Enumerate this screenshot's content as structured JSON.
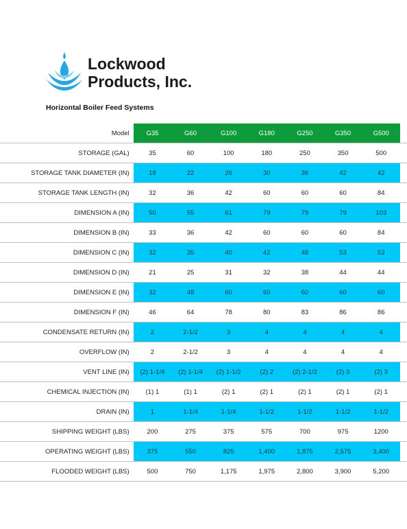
{
  "logo": {
    "line1": "Lockwood",
    "line2": "Products, Inc.",
    "icon": "water-drop-lotus-icon",
    "color": "#29a6e0"
  },
  "subtitle": "Horizontal Boiler Feed Systems",
  "colors": {
    "header": "#0e9b3c",
    "highlight": "#00c8f8"
  },
  "table": {
    "model_label": "Model",
    "models": [
      "G35",
      "G60",
      "G100",
      "G180",
      "G250",
      "G350",
      "G500"
    ],
    "rows": [
      {
        "label": "STORAGE (GAL)",
        "values": [
          "35",
          "60",
          "100",
          "180",
          "250",
          "350",
          "500"
        ]
      },
      {
        "label": "STORAGE TANK DIAMETER (IN)",
        "values": [
          "18",
          "22",
          "26",
          "30",
          "36",
          "42",
          "42"
        ]
      },
      {
        "label": "STORAGE TANK LENGTH (IN)",
        "values": [
          "32",
          "36",
          "42",
          "60",
          "60",
          "60",
          "84"
        ]
      },
      {
        "label": "DIMENSION A (IN)",
        "values": [
          "50",
          "55",
          "61",
          "79",
          "79",
          "79",
          "103"
        ]
      },
      {
        "label": "DIMENSION B (IN)",
        "values": [
          "33",
          "36",
          "42",
          "60",
          "60",
          "60",
          "84"
        ]
      },
      {
        "label": "DIMENSION C (IN)",
        "values": [
          "32",
          "35",
          "40",
          "42",
          "48",
          "53",
          "53"
        ]
      },
      {
        "label": "DIMENSION D (IN)",
        "values": [
          "21",
          "25",
          "31",
          "32",
          "38",
          "44",
          "44"
        ]
      },
      {
        "label": "DIMENSION E (IN)",
        "values": [
          "32",
          "48",
          "60",
          "60",
          "60",
          "60",
          "60"
        ]
      },
      {
        "label": "DIMENSION F (IN)",
        "values": [
          "46",
          "64",
          "78",
          "80",
          "83",
          "86",
          "86"
        ]
      },
      {
        "label": "CONDENSATE RETURN (IN)",
        "values": [
          "2",
          "2-1/2",
          "3",
          "4",
          "4",
          "4",
          "4"
        ]
      },
      {
        "label": "OVERFLOW (IN)",
        "values": [
          "2",
          "2-1/2",
          "3",
          "4",
          "4",
          "4",
          "4"
        ]
      },
      {
        "label": "VENT LINE (IN)",
        "values": [
          "(2) 1-1/4",
          "(2) 1-1/4",
          "(2) 1-1/2",
          "(2) 2",
          "(2) 2-1/2",
          "(2) 3",
          "(2) 3"
        ]
      },
      {
        "label": "CHEMICAL INJECTION (IN)",
        "values": [
          "(1) 1",
          "(1) 1",
          "(2) 1",
          "(2) 1",
          "(2) 1",
          "(2) 1",
          "(2) 1"
        ]
      },
      {
        "label": "DRAIN (IN)",
        "values": [
          "1",
          "1-1/4",
          "1-1/4",
          "1-1/2",
          "1-1/2",
          "1-1/2",
          "1-1/2"
        ]
      },
      {
        "label": "SHIPPING WEIGHT (LBS)",
        "values": [
          "200",
          "275",
          "375",
          "575",
          "700",
          "975",
          "1200"
        ]
      },
      {
        "label": "OPERATING WEIGHT (LBS)",
        "values": [
          "375",
          "550",
          "825",
          "1,400",
          "1,875",
          "2,575",
          "3,400"
        ]
      },
      {
        "label": "FLOODED WEIGHT (LBS)",
        "values": [
          "500",
          "750",
          "1,175",
          "1,975",
          "2,800",
          "3,900",
          "5,200"
        ]
      }
    ]
  }
}
